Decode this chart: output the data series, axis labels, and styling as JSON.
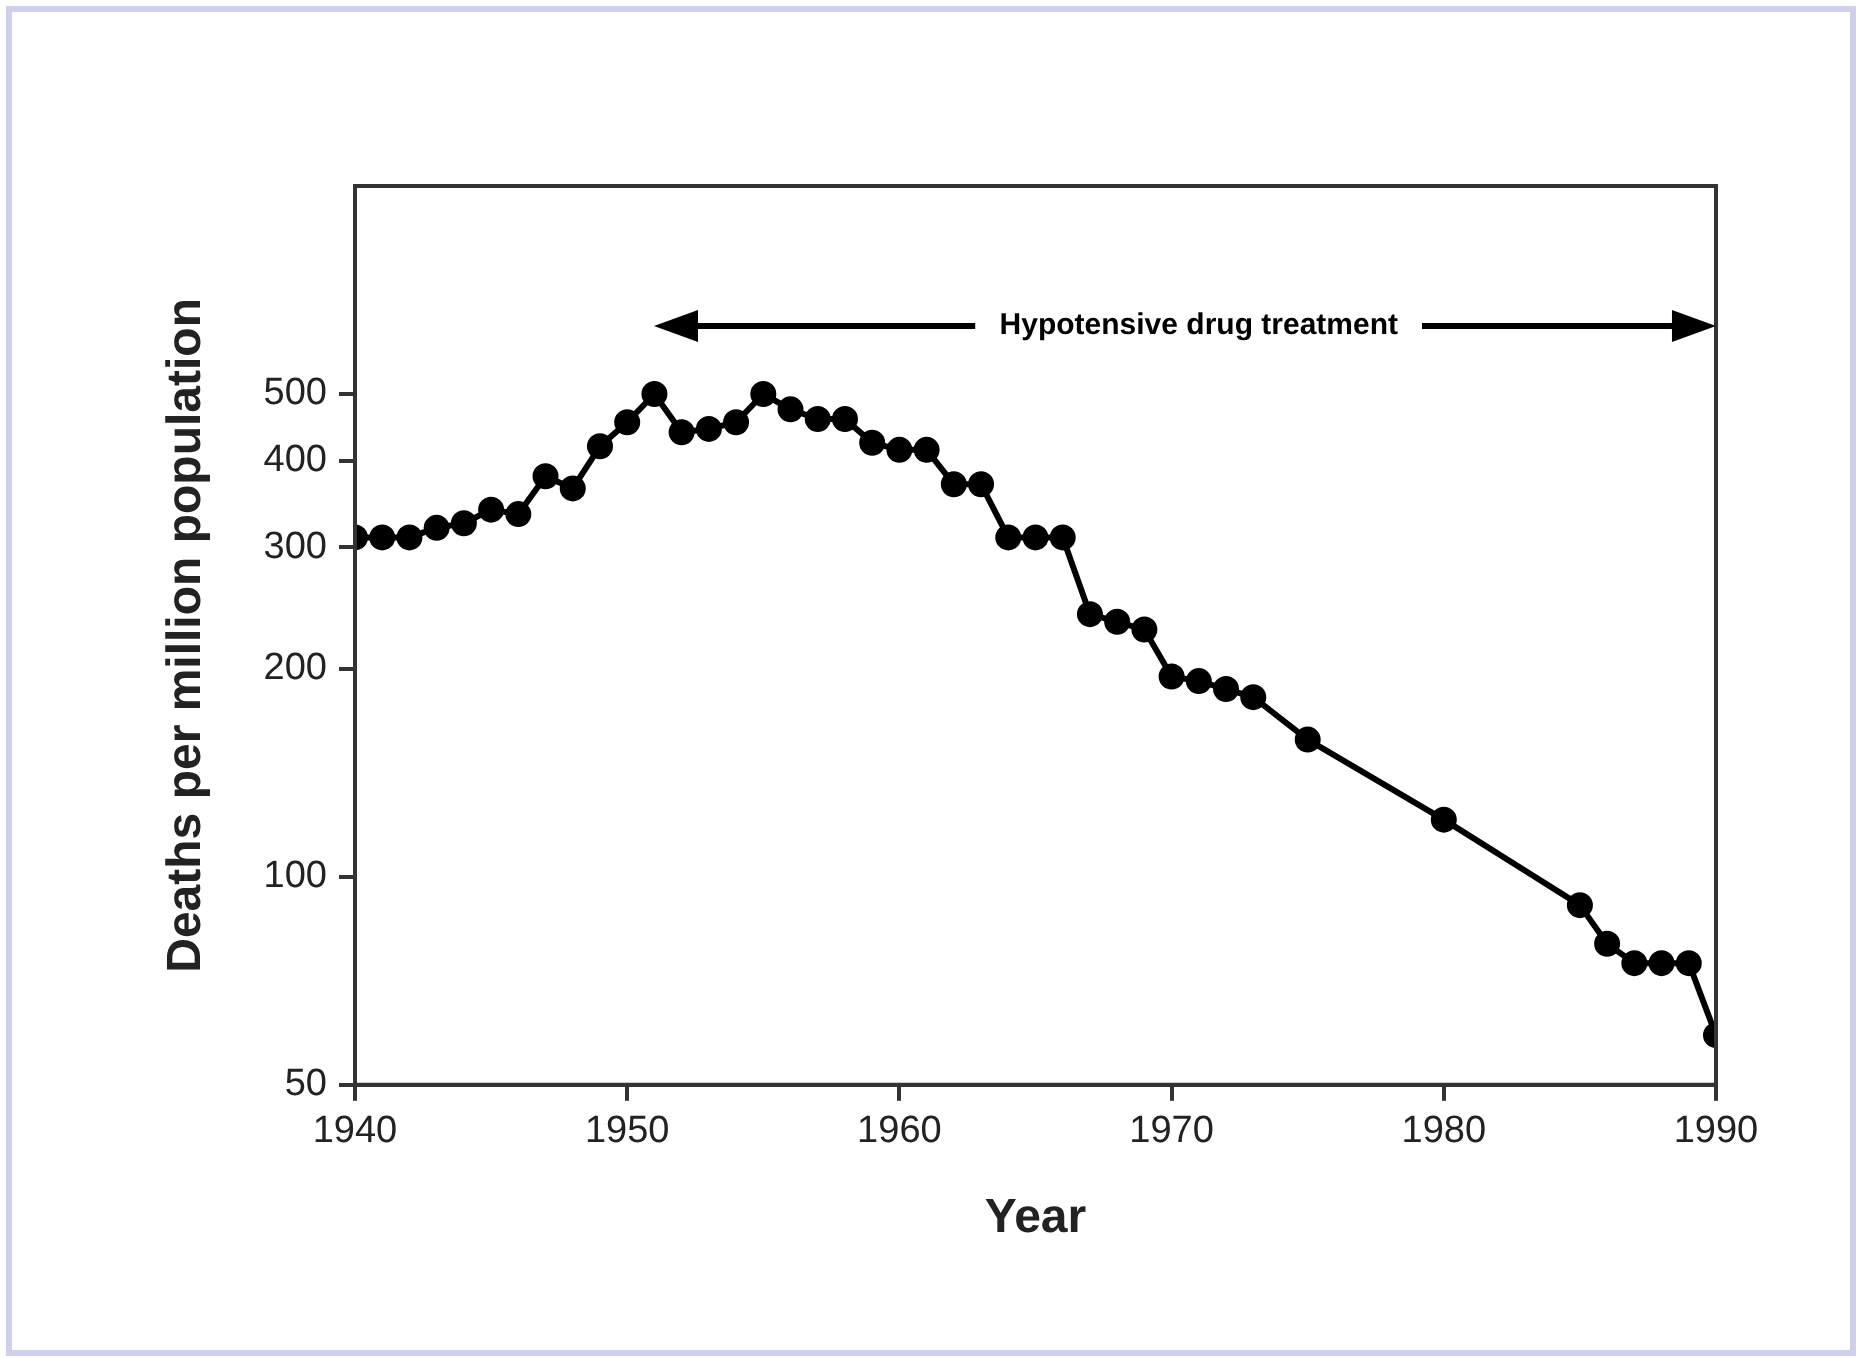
{
  "chart_data": {
    "type": "line",
    "xlabel": "Year",
    "ylabel": "Deaths per million population",
    "log": true,
    "grid": false,
    "legend": false,
    "marker": "circle",
    "line_style": "solid",
    "x": [
      1940,
      1941,
      1942,
      1943,
      1944,
      1945,
      1946,
      1947,
      1948,
      1949,
      1950,
      1951,
      1952,
      1953,
      1954,
      1955,
      1956,
      1957,
      1958,
      1959,
      1960,
      1961,
      1962,
      1963,
      1964,
      1965,
      1966,
      1967,
      1968,
      1969,
      1970,
      1971,
      1972,
      1973,
      1975,
      1980,
      1985,
      1986,
      1987,
      1988,
      1989,
      1990
    ],
    "series": [
      {
        "color": "#000000",
        "values": [
          310,
          310,
          310,
          320,
          325,
          340,
          335,
          380,
          365,
          420,
          455,
          500,
          440,
          445,
          455,
          500,
          475,
          460,
          460,
          425,
          415,
          415,
          370,
          370,
          310,
          310,
          310,
          240,
          234,
          228,
          195,
          192,
          187,
          182,
          158,
          121,
          91,
          80,
          75,
          75,
          75,
          59
        ]
      }
    ],
    "xlim": [
      1940,
      1990
    ],
    "xticks": [
      1940,
      1950,
      1960,
      1970,
      1980,
      1990
    ],
    "ylim": [
      50,
      1000
    ],
    "yticks": [
      50,
      100,
      200,
      300,
      400,
      500
    ],
    "annotations": [
      "Hypotensive drug treatment"
    ]
  }
}
